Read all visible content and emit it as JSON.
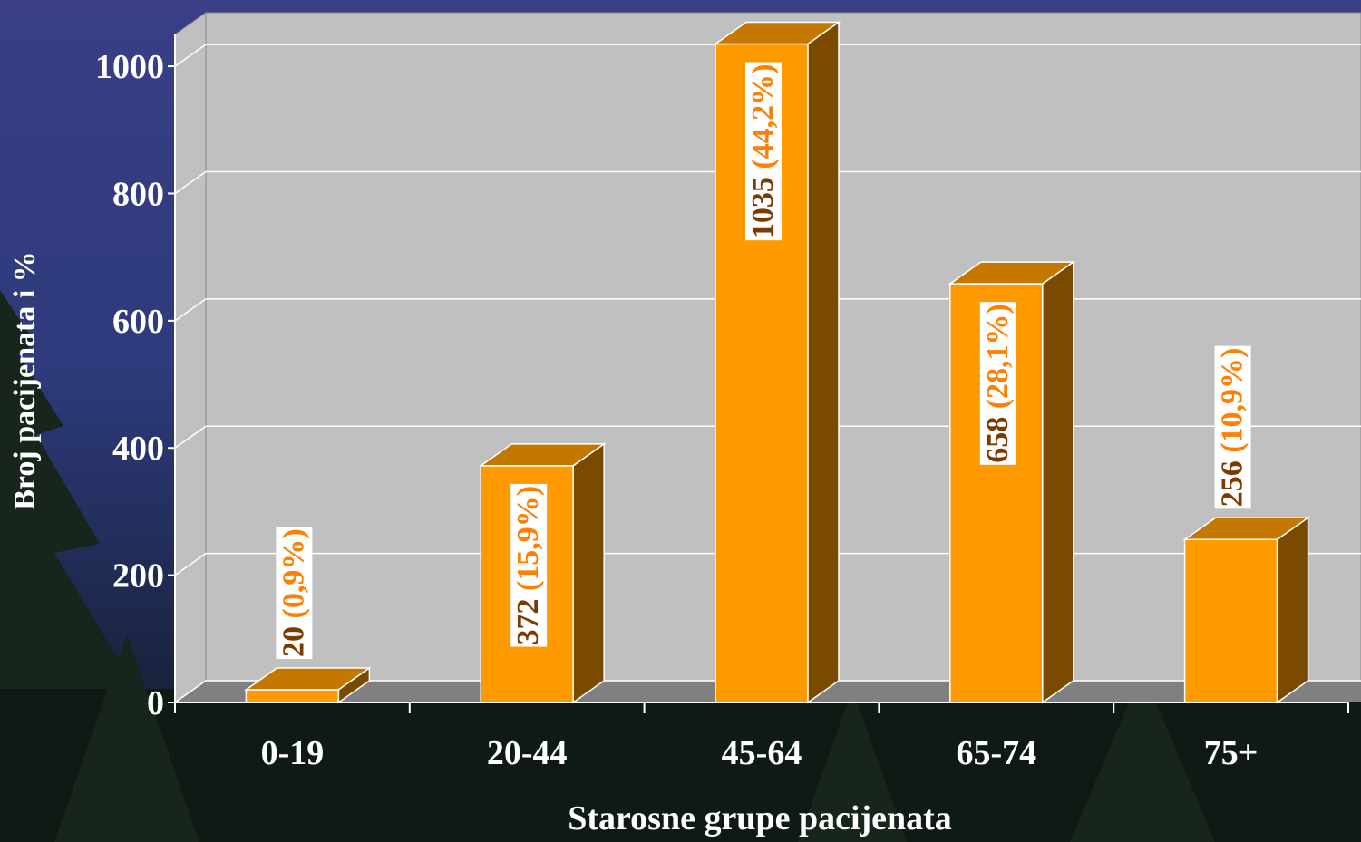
{
  "chart_data": {
    "type": "bar3d",
    "x_label": "Starosne grupe pacijenata",
    "y_label": "Broj pacijenata i %",
    "categories": [
      "0-19",
      "20-44",
      "45-64",
      "65-74",
      "75+"
    ],
    "values": [
      20,
      372,
      1035,
      658,
      256
    ],
    "percent_labels": [
      "(0,9%)",
      "(15,9%)",
      "(44,2%)",
      "(28,1%)",
      "(10,9%)"
    ],
    "color": "#ff9900",
    "ylim": [
      0,
      1050
    ],
    "yticks": [
      0,
      200,
      400,
      600,
      800,
      1000
    ],
    "grid": true
  }
}
